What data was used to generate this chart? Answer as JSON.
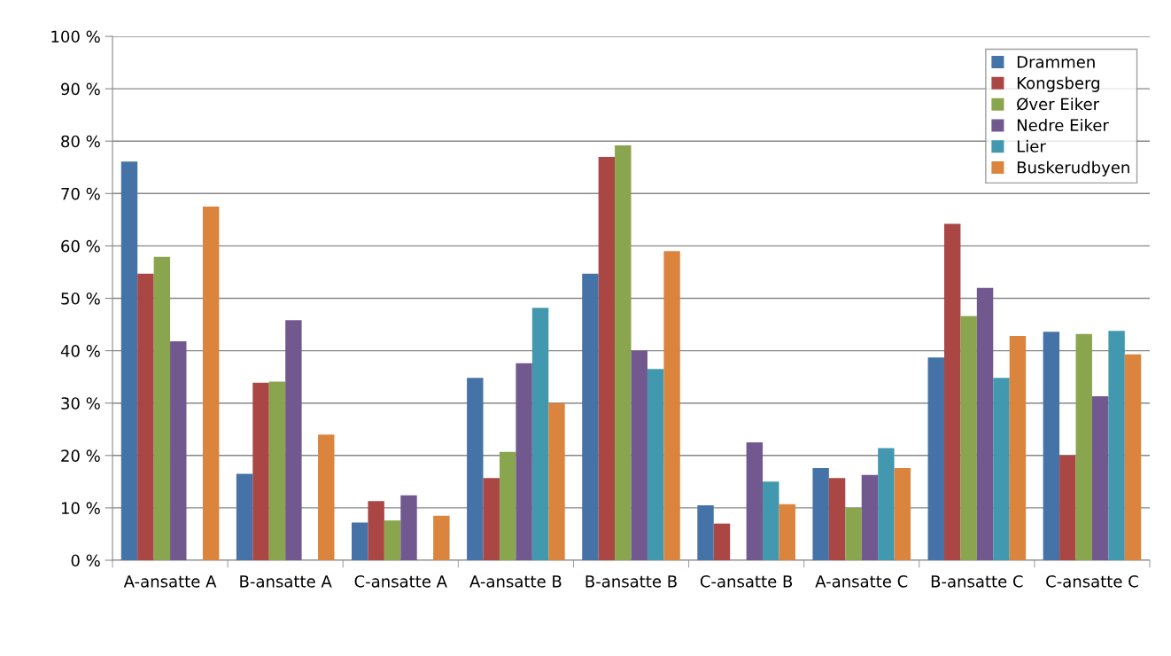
{
  "chart_data": {
    "type": "bar",
    "categories": [
      "A-ansatte A",
      "B-ansatte A",
      "C-ansatte A",
      "A-ansatte B",
      "B-ansatte B",
      "C-ansatte B",
      "A-ansatte C",
      "B-ansatte C",
      "C-ansatte C"
    ],
    "series": [
      {
        "name": "Drammen",
        "color": "#4572a7",
        "values": [
          76.1,
          16.5,
          7.2,
          34.8,
          54.7,
          10.5,
          17.6,
          38.7,
          43.6
        ]
      },
      {
        "name": "Kongsberg",
        "color": "#aa4643",
        "values": [
          54.7,
          33.9,
          11.3,
          15.7,
          77.0,
          7.0,
          15.7,
          64.2,
          20.0
        ]
      },
      {
        "name": "Øver Eiker",
        "color": "#89a54e",
        "values": [
          57.9,
          34.1,
          7.6,
          20.7,
          79.2,
          null,
          10.0,
          46.6,
          43.2
        ]
      },
      {
        "name": "Nedre Eiker",
        "color": "#71588f",
        "values": [
          41.8,
          45.8,
          12.4,
          37.6,
          40.0,
          22.5,
          16.3,
          52.0,
          31.3
        ]
      },
      {
        "name": "Lier",
        "color": "#4198af",
        "values": [
          null,
          null,
          null,
          48.2,
          36.5,
          15.0,
          21.4,
          34.8,
          43.8
        ]
      },
      {
        "name": "Buskerudbyen",
        "color": "#db843d",
        "values": [
          67.5,
          24.0,
          8.5,
          30.0,
          59.0,
          10.7,
          17.6,
          42.8,
          39.3
        ]
      }
    ],
    "ylim": [
      0,
      100
    ],
    "yticks": [
      {
        "value": 0,
        "label": "0 %"
      },
      {
        "value": 10,
        "label": "10 %"
      },
      {
        "value": 20,
        "label": "20 %"
      },
      {
        "value": 30,
        "label": "30 %"
      },
      {
        "value": 40,
        "label": "40 %"
      },
      {
        "value": 50,
        "label": "50 %"
      },
      {
        "value": 60,
        "label": "60 %"
      },
      {
        "value": 70,
        "label": "70 %"
      },
      {
        "value": 80,
        "label": "80 %"
      },
      {
        "value": 90,
        "label": "90 %"
      },
      {
        "value": 100,
        "label": "100 %"
      }
    ],
    "grid": "y",
    "legend": "top right"
  }
}
